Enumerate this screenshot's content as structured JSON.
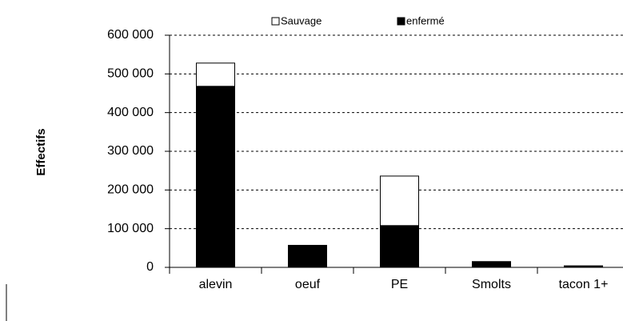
{
  "chart_data": {
    "type": "stacked_bar",
    "y_label": "Effectifs",
    "categories": [
      "alevin",
      "oeuf",
      "PE",
      "Smolts",
      "tacon 1+"
    ],
    "series": [
      {
        "name": "enfermé",
        "color": "#000000",
        "values": [
          468000,
          57000,
          108000,
          15000,
          4000
        ]
      },
      {
        "name": "Sauvage",
        "color": "#ffffff",
        "values": [
          60000,
          0,
          128000,
          0,
          0
        ]
      }
    ],
    "ylim": [
      0,
      600000
    ],
    "yticks": [
      0,
      {
        "value": 100000,
        "label": "100 000"
      },
      {
        "value": 200000,
        "label": "200 000"
      },
      {
        "value": 300000,
        "label": "300 000"
      },
      {
        "value": 400000,
        "label": "400 000"
      },
      {
        "value": 500000,
        "label": "500 000"
      },
      {
        "value": 600000,
        "label": "600 000"
      }
    ],
    "grid": true,
    "legend": "top"
  }
}
